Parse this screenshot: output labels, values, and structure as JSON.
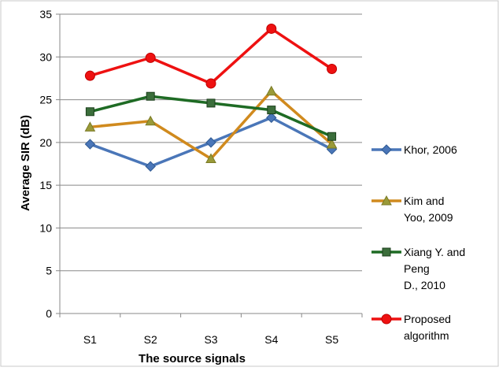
{
  "chart_data": {
    "type": "line",
    "title": "",
    "xlabel": "The source signals",
    "ylabel": "Average SIR (dB)",
    "categories": [
      "S1",
      "S2",
      "S3",
      "S4",
      "S5"
    ],
    "ylim": [
      0,
      35
    ],
    "yticks": [
      0,
      5,
      10,
      15,
      20,
      25,
      30,
      35
    ],
    "grid": "horizontal",
    "legend_position": "right",
    "series": [
      {
        "name": "Khor, 2006",
        "legend_lines": [
          "Khor, 2006"
        ],
        "color": "#4a76b8",
        "marker": "diamond",
        "values": [
          19.8,
          17.2,
          20.0,
          22.9,
          19.2
        ]
      },
      {
        "name": "Kim and Yoo, 2009",
        "legend_lines": [
          "Kim and",
          "Yoo, 2009"
        ],
        "color": "#d08a1e",
        "marker": "triangle",
        "values": [
          21.8,
          22.5,
          18.1,
          26.0,
          19.8
        ]
      },
      {
        "name": "Xiang Y. and Peng D., 2010",
        "legend_lines": [
          "Xiang Y. and",
          "Peng",
          "D., 2010"
        ],
        "color": "#1e6b24",
        "marker": "square",
        "values": [
          23.6,
          25.4,
          24.6,
          23.8,
          20.7
        ]
      },
      {
        "name": "Proposed algorithm",
        "legend_lines": [
          "Proposed",
          "algorithm"
        ],
        "color": "#ee1111",
        "marker": "circle",
        "values": [
          27.8,
          29.9,
          26.9,
          33.3,
          28.6
        ]
      }
    ]
  }
}
